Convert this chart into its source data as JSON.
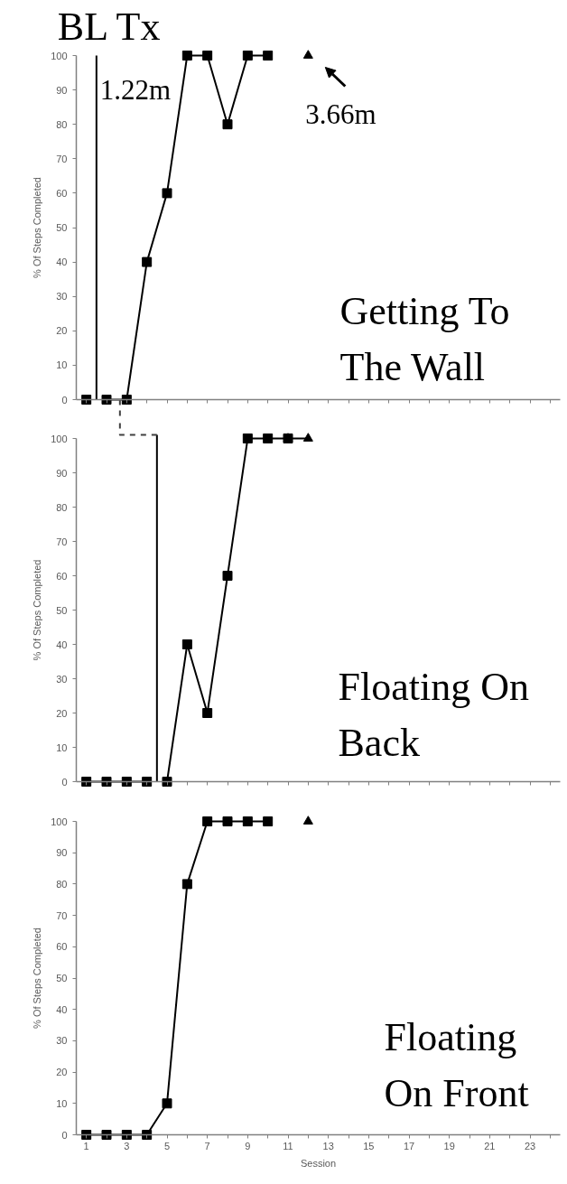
{
  "chart_data": [
    {
      "type": "line",
      "title": "Getting To\nThe Wall",
      "ylabel": "% Of Steps Completed",
      "xlim": [
        0.5,
        24.5
      ],
      "xticks": [
        1,
        {
          "value": 2,
          "label": null
        },
        3,
        {
          "value": 4,
          "label": null
        },
        5,
        {
          "value": 6,
          "label": null
        },
        7,
        {
          "value": 8,
          "label": null
        },
        9,
        {
          "value": 10,
          "label": null
        },
        11,
        {
          "value": 12,
          "label": null
        },
        13,
        {
          "value": 14,
          "label": null
        },
        15,
        {
          "value": 16,
          "label": null
        },
        17,
        {
          "value": 18,
          "label": null
        },
        19,
        {
          "value": 20,
          "label": null
        },
        21,
        {
          "value": 22,
          "label": null
        },
        23,
        {
          "value": 24,
          "label": null
        }
      ],
      "ylim": [
        0,
        100
      ],
      "yticks": [
        0,
        10,
        20,
        30,
        40,
        50,
        60,
        70,
        80,
        90,
        100
      ],
      "tick_labels": "y",
      "marker": "square",
      "series": [
        {
          "color": "#000000",
          "x": [
            1
          ],
          "values": [
            0
          ]
        },
        {
          "color": "#000000",
          "x": [
            2,
            3,
            4,
            5,
            6,
            7,
            8,
            9,
            10
          ],
          "values": [
            0,
            0,
            40,
            60,
            100,
            100,
            80,
            100,
            100
          ]
        },
        {
          "type": "scatter",
          "color": "#000000",
          "marker": "triangle",
          "x": [
            12
          ],
          "values": [
            100
          ]
        }
      ],
      "ref_lines": [
        {
          "axis": "x",
          "value": 1.5,
          "label": "BL Tx",
          "color": "#000000"
        }
      ],
      "annotations": [
        {
          "text": "1.22m",
          "x": 1.5,
          "y": 90
        },
        {
          "text": "3.66m",
          "x": 12,
          "y": 100
        }
      ]
    },
    {
      "type": "line",
      "title": "Floating On\nBack",
      "ylabel": "% Of Steps Completed",
      "xlim": [
        0.5,
        24.5
      ],
      "xticks": [
        1,
        {
          "value": 2,
          "label": null
        },
        3,
        {
          "value": 4,
          "label": null
        },
        5,
        {
          "value": 6,
          "label": null
        },
        7,
        {
          "value": 8,
          "label": null
        },
        9,
        {
          "value": 10,
          "label": null
        },
        11,
        {
          "value": 12,
          "label": null
        },
        13,
        {
          "value": 14,
          "label": null
        },
        15,
        {
          "value": 16,
          "label": null
        },
        17,
        {
          "value": 18,
          "label": null
        },
        19,
        {
          "value": 20,
          "label": null
        },
        21,
        {
          "value": 22,
          "label": null
        },
        23,
        {
          "value": 24,
          "label": null
        }
      ],
      "ylim": [
        0,
        100
      ],
      "yticks": [
        0,
        10,
        20,
        30,
        40,
        50,
        60,
        70,
        80,
        90,
        100
      ],
      "tick_labels": "y",
      "marker": "square",
      "series": [
        {
          "color": "#000000",
          "x": [
            1,
            2,
            3,
            4
          ],
          "values": [
            0,
            0,
            0,
            0
          ]
        },
        {
          "color": "#000000",
          "x": [
            5,
            6,
            7,
            8,
            9,
            10,
            11
          ],
          "values": [
            0,
            40,
            20,
            60,
            100,
            100,
            100
          ]
        },
        {
          "color": "#000000",
          "marker": "triangle",
          "x": [
            11,
            12
          ],
          "values": [
            100,
            100
          ]
        }
      ],
      "ref_lines": [
        {
          "axis": "x",
          "value": 4.5,
          "color": "#000000"
        }
      ]
    },
    {
      "type": "line",
      "title": "Floating\nOn Front",
      "ylabel": "% Of Steps Completed",
      "xlabel": "Session",
      "xlim": [
        0.5,
        24.5
      ],
      "xticks": [
        1,
        {
          "value": 2,
          "label": null
        },
        3,
        {
          "value": 4,
          "label": null
        },
        5,
        {
          "value": 6,
          "label": null
        },
        7,
        {
          "value": 8,
          "label": null
        },
        9,
        {
          "value": 10,
          "label": null
        },
        11,
        {
          "value": 12,
          "label": null
        },
        13,
        {
          "value": 14,
          "label": null
        },
        15,
        {
          "value": 16,
          "label": null
        },
        17,
        {
          "value": 18,
          "label": null
        },
        19,
        {
          "value": 20,
          "label": null
        },
        21,
        {
          "value": 22,
          "label": null
        },
        23,
        {
          "value": 24,
          "label": null
        }
      ],
      "ylim": [
        0,
        100
      ],
      "yticks": [
        0,
        10,
        20,
        30,
        40,
        50,
        60,
        70,
        80,
        90,
        100
      ],
      "marker": "square",
      "series": [
        {
          "color": "#000000",
          "x": [
            1,
            2,
            3,
            4,
            5,
            6,
            7,
            8,
            9,
            10
          ],
          "values": [
            0,
            0,
            0,
            0,
            10,
            80,
            100,
            100,
            100,
            100
          ]
        },
        {
          "type": "scatter",
          "color": "#000000",
          "marker": "triangle",
          "x": [
            12
          ],
          "values": [
            100
          ]
        }
      ]
    }
  ]
}
